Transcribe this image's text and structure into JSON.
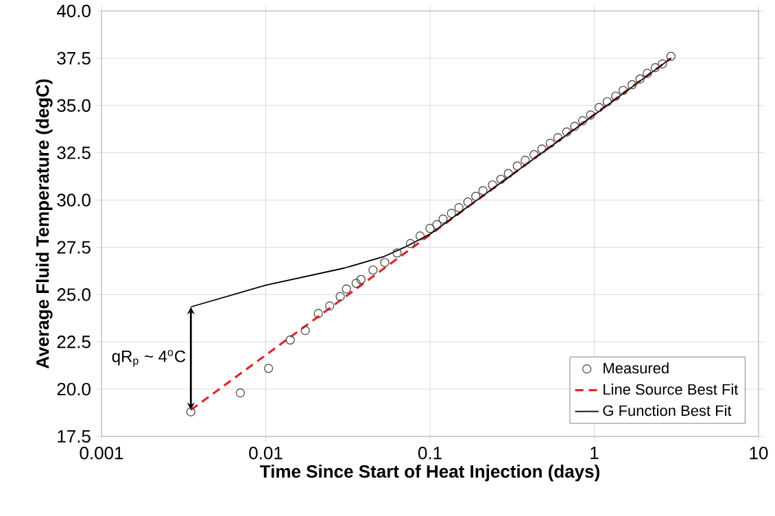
{
  "chart_data": {
    "type": "scatter",
    "xlabel": "Time Since Start of Heat Injection (days)",
    "ylabel": "Average Fluid Temperature (degC)",
    "log": "x",
    "xlim": [
      0.001,
      10
    ],
    "xticks": [
      0.001,
      0.01,
      0.1,
      1,
      10
    ],
    "ylim": [
      17.5,
      40
    ],
    "yticks": [
      17.5,
      {
        "value": 20,
        "label": "20.0"
      },
      22.5,
      {
        "value": 25,
        "label": "25.0"
      },
      27.5,
      {
        "value": 30,
        "label": "30.0"
      },
      32.5,
      {
        "value": 35,
        "label": "35.0"
      },
      37.5,
      {
        "value": 40,
        "label": "40.0"
      }
    ],
    "grid": true,
    "legend": "bottom right",
    "series": [
      {
        "name": "Measured",
        "marker": "circle",
        "color": "#404040",
        "x": [
          0.0035,
          0.007,
          0.0104,
          0.0141,
          0.0174,
          0.0209,
          0.0245,
          0.0284,
          0.031,
          0.0355,
          0.038,
          0.045,
          0.053,
          0.063,
          0.076,
          0.087,
          0.1,
          0.11,
          0.12,
          0.135,
          0.15,
          0.17,
          0.19,
          0.21,
          0.24,
          0.27,
          0.3,
          0.34,
          0.38,
          0.43,
          0.48,
          0.54,
          0.6,
          0.68,
          0.76,
          0.85,
          0.95,
          1.07,
          1.2,
          1.35,
          1.5,
          1.7,
          1.9,
          2.1,
          2.35,
          2.6,
          2.93
        ],
        "values": [
          18.8,
          19.8,
          21.1,
          22.6,
          23.1,
          24.0,
          24.4,
          24.9,
          25.3,
          25.6,
          25.8,
          26.3,
          26.7,
          27.2,
          27.7,
          28.1,
          28.5,
          28.7,
          29.0,
          29.3,
          29.6,
          29.9,
          30.2,
          30.5,
          30.8,
          31.1,
          31.4,
          31.8,
          32.1,
          32.4,
          32.7,
          33.0,
          33.3,
          33.6,
          33.9,
          34.2,
          34.5,
          34.9,
          35.2,
          35.5,
          35.8,
          36.1,
          36.4,
          36.7,
          37.0,
          37.2,
          37.6
        ]
      },
      {
        "name": "Line Source Best Fit",
        "type": "line",
        "marker": "none",
        "line_style": "dashed",
        "color": "#e3262b",
        "x": [
          0.0035,
          2.93
        ],
        "values": [
          18.9,
          37.5
        ]
      },
      {
        "name": "G Function Best Fit",
        "type": "line",
        "marker": "none",
        "line_style": "solid",
        "color": "#000000",
        "x": [
          0.0035,
          0.01,
          0.03,
          0.052,
          0.07,
          0.1,
          1,
          2.93
        ],
        "values": [
          24.35,
          25.5,
          26.4,
          27.0,
          27.5,
          28.2,
          34.5,
          37.5
        ]
      }
    ],
    "annotations": [
      "qR$_{p}$ ~ 4$^{o}$C"
    ]
  }
}
